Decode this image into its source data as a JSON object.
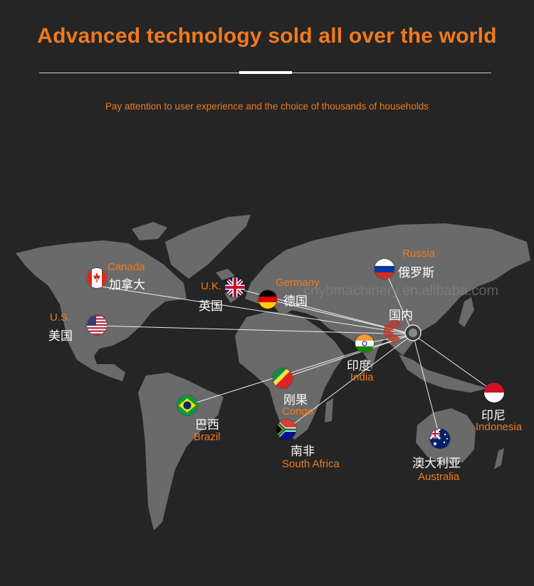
{
  "title": "Advanced technology sold all over the world",
  "subtitle": "Pay attention to user experience and the choice of thousands of households",
  "watermark": "cnybmachinery.en.alibaba.com",
  "hub": {
    "cn": "国内"
  },
  "locations": {
    "canada": {
      "en": "Canada",
      "cn": "加拿大"
    },
    "uk": {
      "en": "U.K.",
      "cn": "英国"
    },
    "germany": {
      "en": "Germany",
      "cn": "德国"
    },
    "russia": {
      "en": "Russia",
      "cn": "俄罗斯"
    },
    "us": {
      "en": "U.S.",
      "cn": "美国"
    },
    "india": {
      "en": "India",
      "cn": "印度"
    },
    "congo": {
      "en": "Congo",
      "cn": "刚果"
    },
    "brazil": {
      "en": "Brazil",
      "cn": "巴西"
    },
    "south_africa": {
      "en": "South Africa",
      "cn": "南非"
    },
    "indonesia": {
      "en": "Indonesia",
      "cn": "印尼"
    },
    "australia": {
      "en": "Australia",
      "cn": "澳大利亚"
    }
  },
  "colors": {
    "background": "#252525",
    "land": "#6a6a6a",
    "accent": "#f07a1c",
    "line": "#ffffff"
  },
  "icons": {
    "flag_style": "round-flag-icon"
  }
}
